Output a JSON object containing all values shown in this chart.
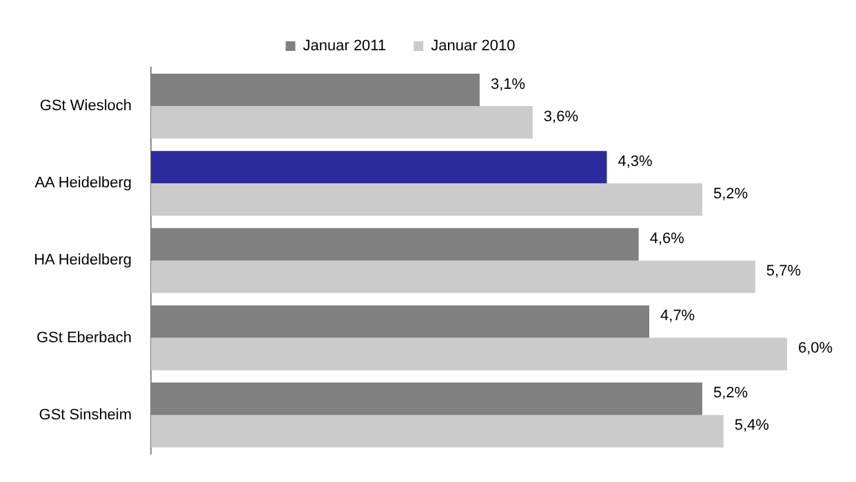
{
  "chart_data": {
    "type": "bar",
    "orientation": "horizontal",
    "categories": [
      "GSt Wiesloch",
      "AA Heidelberg",
      "HA Heidelberg",
      "GSt Eberbach",
      "GSt Sinsheim"
    ],
    "series": [
      {
        "name": "Januar 2011",
        "color": "#808080",
        "colors": [
          "#808080",
          "#2b2b9b",
          "#808080",
          "#808080",
          "#808080"
        ],
        "values": [
          3.1,
          4.3,
          4.6,
          4.7,
          5.2
        ],
        "value_labels": [
          "3,1%",
          "4,3%",
          "4,6%",
          "4,7%",
          "5,2%"
        ]
      },
      {
        "name": "Januar 2010",
        "color": "#cbcbcb",
        "values": [
          3.6,
          5.2,
          5.7,
          6.0,
          5.4
        ],
        "value_labels": [
          "3,6%",
          "5,2%",
          "5,7%",
          "6,0%",
          "5,4%"
        ]
      }
    ],
    "tick_labels": "y",
    "legend": "top"
  }
}
